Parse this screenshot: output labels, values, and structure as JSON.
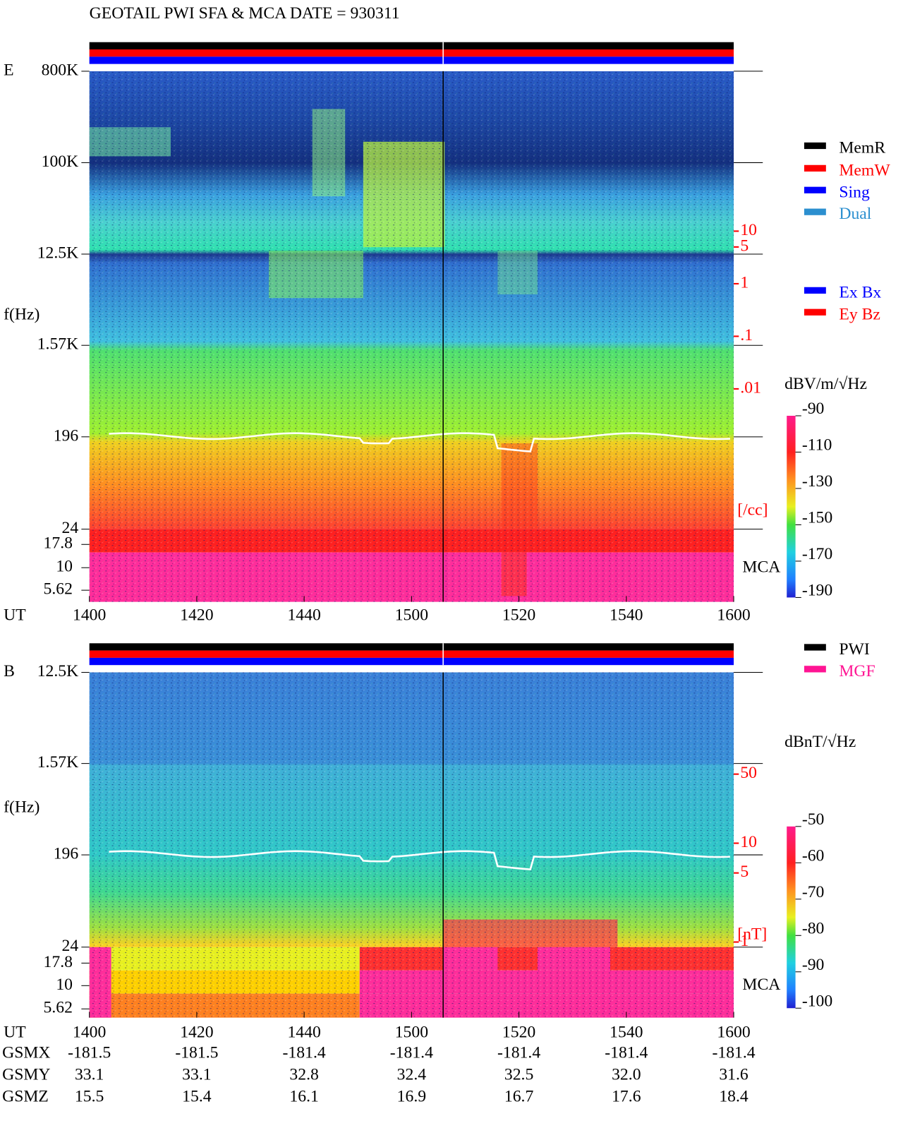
{
  "title": "GEOTAIL  PWI SFA & MCA   DATE = 930311",
  "chart_data": [
    {
      "type": "spectrogram",
      "panel_label": "E",
      "y_label": "f(Hz)",
      "x_label": "UT",
      "categories": [
        "1400",
        "1420",
        "1440",
        "1500",
        "1520",
        "1540",
        "1600"
      ],
      "log_y": true,
      "ylim": [
        24,
        800000
      ],
      "yticks": [
        {
          "value": 800000,
          "label": "800K"
        },
        {
          "value": 100000,
          "label": "100K"
        },
        {
          "value": 12500,
          "label": "12.5K"
        },
        {
          "value": 1570,
          "label": "1.57K"
        },
        196,
        24
      ],
      "mca_label": "MCA",
      "mca_ticks": [
        17.8,
        10,
        5.62
      ],
      "density_lim": [
        0.01,
        10
      ],
      "density_ticks": [
        10,
        5,
        1,
        {
          "value": 0.1,
          "label": ".1"
        },
        {
          "value": 0.01,
          "label": ".01"
        }
      ],
      "density_unit": "[/cc]",
      "colorbar_label": "dBV/m/√Hz",
      "clim": [
        -190,
        -90
      ],
      "cticks": [
        -90,
        -110,
        -130,
        -150,
        -170,
        -190
      ],
      "legend": [
        {
          "name": "MemR",
          "color": "#000000"
        },
        {
          "name": "MemW",
          "color": "#ff0000"
        },
        {
          "name": "Sing",
          "color": "#0000ff"
        },
        {
          "name": "Dual",
          "color": "#2b8fcf"
        }
      ],
      "legend2": [
        {
          "name": "Ex Bx",
          "color": "#0000ff"
        },
        {
          "name": "Ey Bz",
          "color": "#ff0000"
        }
      ]
    },
    {
      "type": "spectrogram",
      "panel_label": "B",
      "y_label": "f(Hz)",
      "x_label": "UT",
      "categories": [
        "1400",
        "1420",
        "1440",
        "1500",
        "1520",
        "1540",
        "1600"
      ],
      "log_y": true,
      "ylim": [
        24,
        12500
      ],
      "yticks": [
        {
          "value": 12500,
          "label": "12.5K"
        },
        {
          "value": 1570,
          "label": "1.57K"
        },
        196,
        24
      ],
      "mca_label": "MCA",
      "mca_ticks": [
        17.8,
        10,
        5.62
      ],
      "density_lim": [
        1,
        50
      ],
      "density_ticks": [
        50,
        10,
        5,
        1
      ],
      "density_unit": "[nT]",
      "colorbar_label": "dBnT/√Hz",
      "clim": [
        -100,
        -50
      ],
      "cticks": [
        -50,
        -60,
        -70,
        -80,
        -90,
        -100
      ],
      "legend": [
        {
          "name": "PWI",
          "color": "#000000"
        },
        {
          "name": "MGF",
          "color": "#ff1493"
        }
      ]
    }
  ],
  "orbit": {
    "rows": [
      {
        "label": "GSMX",
        "values": [
          -181.5,
          -181.5,
          -181.4,
          -181.4,
          -181.4,
          -181.4,
          -181.4
        ]
      },
      {
        "label": "GSMY",
        "values": [
          33.1,
          33.1,
          32.8,
          32.4,
          32.5,
          {
            "value": 32,
            "label": "32.0"
          },
          31.6
        ]
      },
      {
        "label": "GSMZ",
        "values": [
          15.5,
          15.4,
          16.1,
          16.9,
          16.7,
          17.6,
          18.4
        ]
      }
    ]
  }
}
